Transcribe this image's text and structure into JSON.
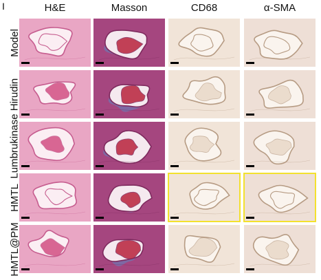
{
  "panel_letter": "I",
  "columns": [
    {
      "label": "H&E",
      "stain": "he"
    },
    {
      "label": "Masson",
      "stain": "masson"
    },
    {
      "label": "CD68",
      "stain": "ihc"
    },
    {
      "label": "α-SMA",
      "stain": "ihc2"
    }
  ],
  "rows": [
    {
      "label": "Model"
    },
    {
      "label": "Hirudin"
    },
    {
      "label": "Lumbrukinase"
    },
    {
      "label": "HMTL"
    },
    {
      "label": "HMTL@PM"
    }
  ],
  "highlighted_tiles": [
    {
      "row": 3,
      "col": 2
    },
    {
      "row": 3,
      "col": 3
    }
  ],
  "colors": {
    "he_bg": "#e9a6c4",
    "he_clot": "#d24f83",
    "masson_bg": "#a5467f",
    "masson_blue": "#5f86c2",
    "masson_clot": "#b8233c",
    "ihc_bg": "#f1e4d8",
    "ihc_line": "#b69b83",
    "highlight": "#f3e12d"
  }
}
